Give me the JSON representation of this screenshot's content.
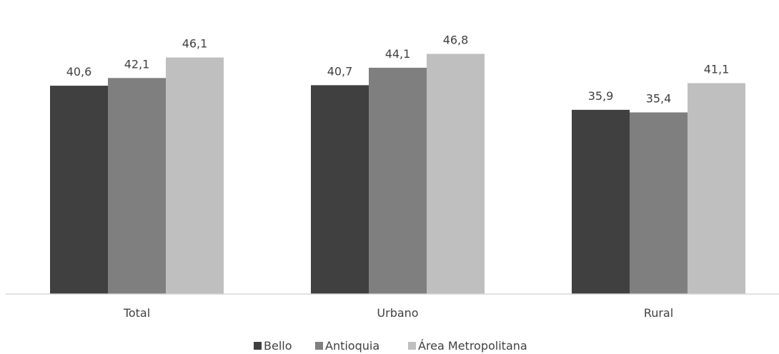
{
  "chart_data": {
    "type": "bar",
    "categories": [
      "Total",
      "Urbano",
      "Rural"
    ],
    "series": [
      {
        "name": "Bello",
        "values": [
          "40,6",
          "40,7",
          "35,9"
        ],
        "color": "#404040"
      },
      {
        "name": "Antioquia",
        "values": [
          "42,1",
          "44,1",
          "35,4"
        ],
        "color": "#7f7f7f"
      },
      {
        "name": "Área Metropolitana",
        "values": [
          "46,1",
          "46,8",
          "41,1"
        ],
        "color": "#bfbfbf"
      }
    ],
    "ylim": [
      0,
      50
    ],
    "grid": false,
    "legend": "bottom-center",
    "title": "",
    "xlabel": "",
    "ylabel": ""
  }
}
